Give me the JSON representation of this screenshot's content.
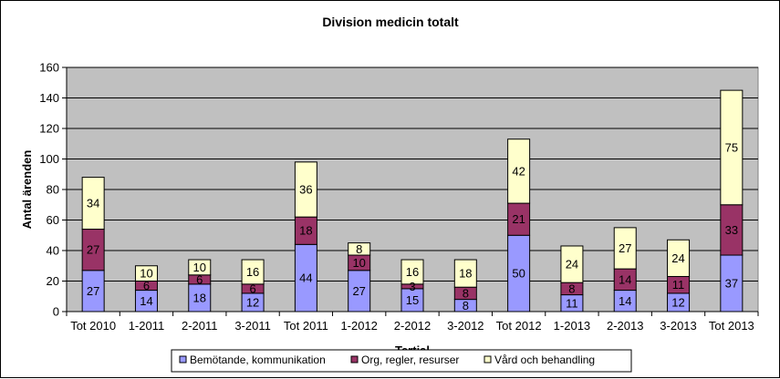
{
  "chart_data": {
    "type": "bar",
    "stacked": true,
    "title": "Division medicin totalt",
    "xlabel": "Tertial",
    "ylabel": "Antal ärenden",
    "ylim": [
      0,
      160
    ],
    "yticks": [
      0,
      20,
      40,
      60,
      80,
      100,
      120,
      140,
      160
    ],
    "grid": true,
    "legend_position": "bottom",
    "categories": [
      "Tot 2010",
      "1-2011",
      "2-2011",
      "3-2011",
      "Tot 2011",
      "1-2012",
      "2-2012",
      "3-2012",
      "Tot 2012",
      "1-2013",
      "2-2013",
      "3-2013",
      "Tot 2013"
    ],
    "series": [
      {
        "name": "Bemötande, kommunikation",
        "color": "#9999ff",
        "values": [
          27,
          14,
          18,
          12,
          44,
          27,
          15,
          8,
          50,
          11,
          14,
          12,
          37
        ]
      },
      {
        "name": "Org, regler, resurser",
        "color": "#993366",
        "values": [
          27,
          6,
          6,
          6,
          18,
          10,
          3,
          8,
          21,
          8,
          14,
          11,
          33
        ]
      },
      {
        "name": "Vård och behandling",
        "color": "#ffffcc",
        "values": [
          34,
          10,
          10,
          16,
          36,
          8,
          16,
          18,
          42,
          24,
          27,
          24,
          75
        ]
      }
    ],
    "plot_background": "#c0c0c0"
  }
}
